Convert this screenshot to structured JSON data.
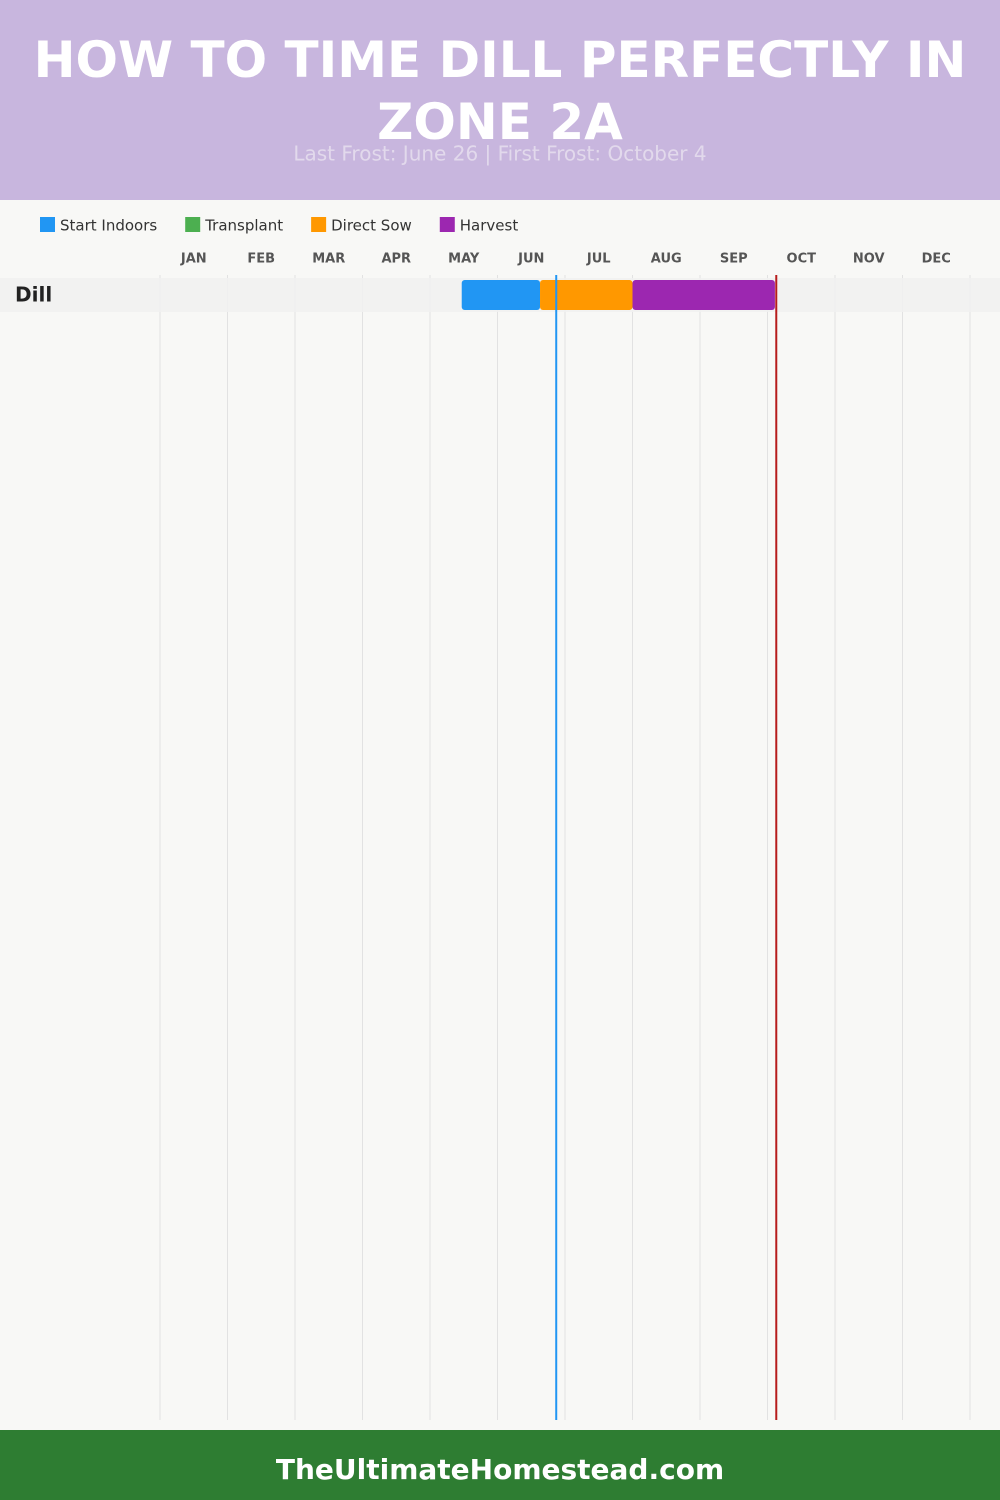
{
  "chart_data": {
    "type": "gantt",
    "title": "HOW TO TIME DILL PERFECTLY IN ZONE 2A",
    "subtitle": "Last Frost: June 26 | First Frost: October 4",
    "footer": "TheUltimateHomestead.com",
    "categories": [
      "JAN",
      "FEB",
      "MAR",
      "APR",
      "MAY",
      "JUN",
      "JUL",
      "AUG",
      "SEP",
      "OCT",
      "NOV",
      "DEC"
    ],
    "xlim": [
      0,
      12
    ],
    "xticks": [
      0,
      1,
      2,
      3,
      4,
      5,
      6,
      7,
      8,
      9,
      10,
      11,
      12
    ],
    "grid": true,
    "tasks": [
      "Dill"
    ],
    "series": [
      {
        "name": "Start Indoors",
        "color": "#2196f3",
        "start": [
          4.47
        ],
        "end": [
          5.63
        ]
      },
      {
        "name": "Transplant",
        "color": "#4caf50",
        "start": [
          null
        ],
        "end": [
          null
        ]
      },
      {
        "name": "Direct Sow",
        "color": "#ff9800",
        "start": [
          5.63
        ],
        "end": [
          7.0
        ]
      },
      {
        "name": "Harvest",
        "color": "#9c27b0",
        "start": [
          7.0
        ],
        "end": [
          9.11
        ]
      }
    ],
    "markers": [
      {
        "value": 5.87,
        "color": "#2196f3"
      },
      {
        "value": 9.13,
        "color": "#b71c1c"
      }
    ]
  }
}
